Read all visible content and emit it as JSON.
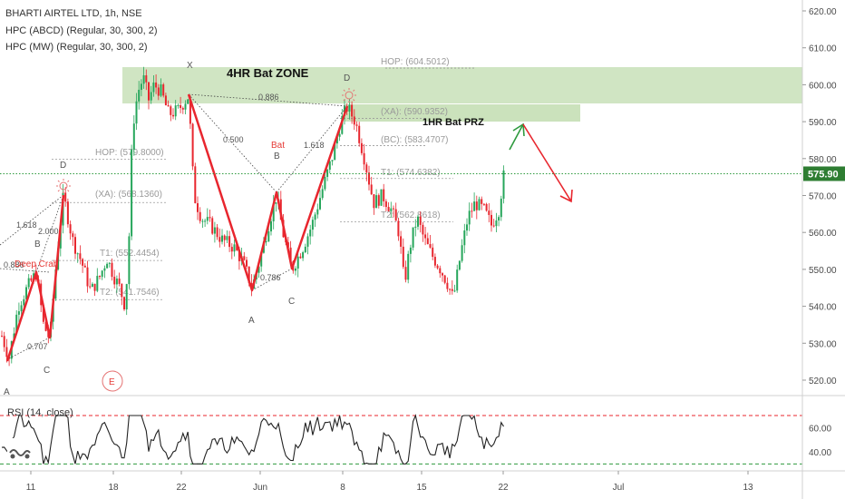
{
  "legend": {
    "line1": "BHARTI AIRTEL LTD, 1h, NSE",
    "line2": "HPC (ABCD) (Regular, 30, 300, 2)",
    "line3": "HPC (MW) (Regular, 30, 300, 2)"
  },
  "rsi_label": "RSI (14, close)",
  "last_price": "575.90",
  "colors": {
    "up": "#26a65b",
    "down": "#e8262e",
    "pattern": "#e8262e",
    "zone": "#c8e0b8",
    "green_arrow": "#2e9a3e"
  },
  "icons": [
    "sun-icon",
    "eye-icon",
    "tradingview-logo-icon"
  ],
  "chart_data": {
    "type": "candlestick",
    "y_ticks": [
      "620.00",
      "610.00",
      "600.00",
      "590.00",
      "580.00",
      "570.00",
      "560.00",
      "550.00",
      "540.00",
      "530.00",
      "520.00"
    ],
    "rsi_ticks": [
      "60.00",
      "40.00"
    ],
    "x_ticks": [
      "11",
      "18",
      "22",
      "Jun",
      "8",
      "15",
      "22",
      "Jul",
      "13"
    ],
    "ylim": [
      516,
      624
    ],
    "rsi_ylim": [
      25,
      85
    ],
    "rsi_levels": [
      70,
      30
    ],
    "annotations": {
      "zone_label": "4HR Bat ZONE",
      "prz_label": "1HR Bat PRZ",
      "zone_range": [
        595,
        605
      ],
      "prz_range": [
        589.5,
        594
      ]
    },
    "levels": [
      {
        "text": "HOP: (604.5012)",
        "value": 604.5
      },
      {
        "text": "(XA): (590.9352)",
        "value": 590.9
      },
      {
        "text": "(BC): (583.4707)",
        "value": 583.5
      },
      {
        "text": "T1: (574.6382)",
        "value": 574.6
      },
      {
        "text": "T2: (562.8618)",
        "value": 562.9
      },
      {
        "text": "HOP: (579.8000)",
        "value": 579.8
      },
      {
        "text": "(XA): (568.1360)",
        "value": 568.1
      },
      {
        "text": "T1: (552.4454)",
        "value": 552.4
      },
      {
        "text": "T2: (541.7546)",
        "value": 541.8
      }
    ],
    "pattern_labels": {
      "X": "X",
      "A": "A",
      "B": "B",
      "C": "C",
      "D": "D",
      "bat": "Bat",
      "r1": "0.886",
      "r2": "0.500",
      "r3": "1.618",
      "r4": "0.786",
      "left_A": "A",
      "left_B": "B",
      "left_C": "C",
      "left_D": "D",
      "left_r1": "1.618",
      "left_r2": "2.000",
      "left_r3": "0.707",
      "left_r4": "0.886",
      "deep_crab": "Deep Crab",
      "event_marker": "E"
    },
    "last_price": 575.9
  }
}
